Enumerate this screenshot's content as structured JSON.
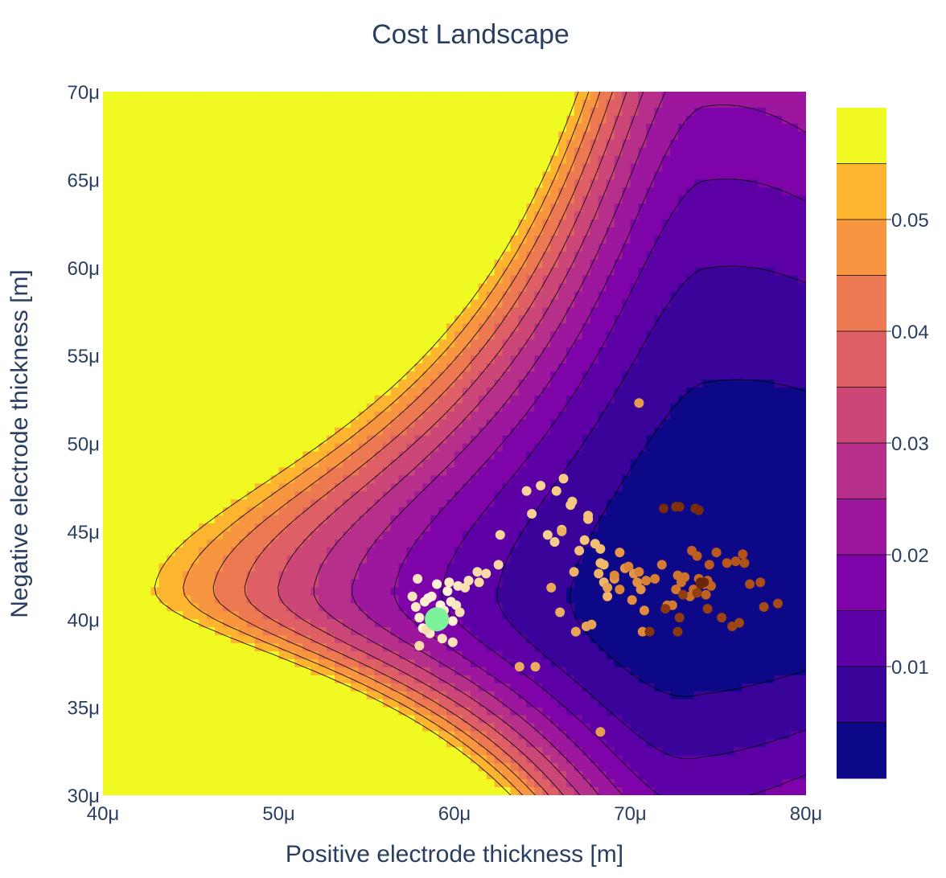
{
  "chart_data": {
    "type": "contour",
    "title": "Cost Landscape",
    "xlabel": "Positive electrode thickness [m]",
    "ylabel": "Negative electrode thickness [m]",
    "xlim": [
      4e-05,
      8e-05
    ],
    "ylim": [
      3e-05,
      7e-05
    ],
    "x_ticks": [
      "40μ",
      "50μ",
      "60μ",
      "70μ",
      "80μ"
    ],
    "y_ticks": [
      "30μ",
      "35μ",
      "40μ",
      "45μ",
      "50μ",
      "55μ",
      "60μ",
      "65μ",
      "70μ"
    ],
    "colorscale": "plasma",
    "colorbar": {
      "range": [
        0,
        0.06
      ],
      "levels": [
        0.005,
        0.01,
        0.015,
        0.02,
        0.025,
        0.03,
        0.035,
        0.04,
        0.045,
        0.05,
        0.055
      ],
      "tick_values": [
        0.01,
        0.02,
        0.03,
        0.04,
        0.05
      ],
      "tick_labels": [
        "0.01",
        "0.02",
        "0.03",
        "0.04",
        "0.05"
      ],
      "band_colors": [
        "#0d0887",
        "#3a049a",
        "#5c01a6",
        "#7e03a8",
        "#9c179e",
        "#b6308b",
        "#cc4778",
        "#de5f65",
        "#ed7953",
        "#f89540",
        "#fdb42f",
        "#f0f921"
      ]
    },
    "contour_model": {
      "minimum_x": 7.4e-05,
      "minimum_y": 4.2e-05,
      "sx": 7.8e-06,
      "sy": 6.7e-06,
      "kx": 0.4,
      "ky": 0.55,
      "c": 2.0,
      "cxy": 0.65,
      "power": 1.8,
      "scale": 0.0045,
      "base": 0.001
    },
    "optimizer_path": {
      "colorscale": [
        "#fff5dc",
        "#f5c47a",
        "#e08a3a",
        "#b8561b",
        "#6b2408"
      ],
      "points": [
        [
          5.85e-05,
          4.12e-05
        ],
        [
          5.92e-05,
          4.08e-05
        ],
        [
          5.88e-05,
          4.02e-05
        ],
        [
          5.96e-05,
          4.16e-05
        ],
        [
          5.82e-05,
          3.95e-05
        ],
        [
          5.9e-05,
          4.2e-05
        ],
        [
          5.99e-05,
          3.99e-05
        ],
        [
          5.87e-05,
          4.13e-05
        ],
        [
          5.94e-05,
          4.05e-05
        ],
        [
          5.83e-05,
          4.1e-05
        ],
        [
          5.8e-05,
          4.01e-05
        ],
        [
          5.91e-05,
          3.97e-05
        ],
        [
          5.98e-05,
          4.1e-05
        ],
        [
          5.86e-05,
          3.92e-05
        ],
        [
          5.78e-05,
          4.07e-05
        ],
        [
          5.97e-05,
          4.21e-05
        ],
        [
          6.02e-05,
          4.19e-05
        ],
        [
          6.01e-05,
          4.08e-05
        ],
        [
          5.79e-05,
          4.23e-05
        ],
        [
          5.76e-05,
          4.13e-05
        ],
        [
          5.93e-05,
          3.89e-05
        ],
        [
          5.99e-05,
          3.87e-05
        ],
        [
          6.06e-05,
          4.18e-05
        ],
        [
          6.08e-05,
          4.22e-05
        ],
        [
          6.03e-05,
          4.04e-05
        ],
        [
          5.84e-05,
          3.94e-05
        ],
        [
          5.8e-05,
          3.85e-05
        ],
        [
          6.13e-05,
          4.27e-05
        ],
        [
          6.18e-05,
          4.26e-05
        ],
        [
          6.14e-05,
          4.21e-05
        ],
        [
          6.25e-05,
          4.31e-05
        ],
        [
          6.26e-05,
          4.48e-05
        ],
        [
          6.41e-05,
          4.73e-05
        ],
        [
          6.49e-05,
          4.76e-05
        ],
        [
          6.44e-05,
          4.6e-05
        ],
        [
          6.53e-05,
          4.48e-05
        ],
        [
          6.57e-05,
          4.44e-05
        ],
        [
          6.58e-05,
          4.73e-05
        ],
        [
          6.62e-05,
          4.8e-05
        ],
        [
          6.61e-05,
          4.51e-05
        ],
        [
          6.66e-05,
          4.65e-05
        ],
        [
          6.67e-05,
          4.67e-05
        ],
        [
          6.74e-05,
          4.45e-05
        ],
        [
          6.76e-05,
          4.57e-05
        ],
        [
          6.76e-05,
          4.59e-05
        ],
        [
          6.8e-05,
          4.43e-05
        ],
        [
          6.71e-05,
          4.39e-05
        ],
        [
          6.83e-05,
          4.4e-05
        ],
        [
          6.83e-05,
          4.32e-05
        ],
        [
          6.85e-05,
          4.31e-05
        ],
        [
          6.85e-05,
          4.21e-05
        ],
        [
          6.87e-05,
          4.13e-05
        ],
        [
          6.82e-05,
          4.26e-05
        ],
        [
          6.68e-05,
          4.27e-05
        ],
        [
          6.61e-05,
          4.5e-05
        ],
        [
          6.6e-05,
          4.04e-05
        ],
        [
          6.46e-05,
          3.73e-05
        ],
        [
          6.37e-05,
          3.73e-05
        ],
        [
          6.55e-05,
          4.18e-05
        ],
        [
          6.69e-05,
          3.93e-05
        ],
        [
          6.75e-05,
          3.96e-05
        ],
        [
          6.78e-05,
          3.97e-05
        ],
        [
          6.87e-05,
          4.18e-05
        ],
        [
          6.83e-05,
          3.36e-05
        ],
        [
          7.05e-05,
          5.23e-05
        ],
        [
          6.91e-05,
          4.23e-05
        ],
        [
          6.94e-05,
          4.38e-05
        ],
        [
          6.97e-05,
          4.29e-05
        ],
        [
          7.02e-05,
          4.26e-05
        ],
        [
          7.06e-05,
          4.17e-05
        ],
        [
          7.01e-05,
          4.11e-05
        ],
        [
          7.04e-05,
          4.21e-05
        ],
        [
          7.08e-05,
          4.05e-05
        ],
        [
          7.07e-05,
          3.93e-05
        ],
        [
          6.91e-05,
          4.25e-05
        ],
        [
          6.94e-05,
          4.17e-05
        ],
        [
          6.99e-05,
          4.3e-05
        ],
        [
          7.05e-05,
          4.27e-05
        ],
        [
          7.09e-05,
          4.22e-05
        ],
        [
          7.14e-05,
          4.23e-05
        ],
        [
          7.18e-05,
          4.31e-05
        ],
        [
          7.21e-05,
          4.08e-05
        ],
        [
          7.24e-05,
          4.08e-05
        ],
        [
          7.26e-05,
          4.17e-05
        ],
        [
          7.27e-05,
          4.25e-05
        ],
        [
          7.29e-05,
          4.21e-05
        ],
        [
          7.31e-05,
          4.24e-05
        ],
        [
          7.34e-05,
          4.13e-05
        ],
        [
          7.36e-05,
          4.17e-05
        ],
        [
          7.39e-05,
          4.23e-05
        ],
        [
          7.41e-05,
          4.21e-05
        ],
        [
          7.42e-05,
          4.2e-05
        ],
        [
          7.44e-05,
          4.22e-05
        ],
        [
          7.46e-05,
          4.19e-05
        ],
        [
          7.43e-05,
          4.14e-05
        ],
        [
          7.35e-05,
          4.39e-05
        ],
        [
          7.38e-05,
          4.36e-05
        ],
        [
          7.45e-05,
          4.31e-05
        ],
        [
          7.49e-05,
          4.38e-05
        ],
        [
          7.55e-05,
          4.32e-05
        ],
        [
          7.6e-05,
          4.33e-05
        ],
        [
          7.64e-05,
          4.37e-05
        ],
        [
          7.65e-05,
          4.32e-05
        ],
        [
          7.68e-05,
          4.2e-05
        ],
        [
          7.74e-05,
          4.21e-05
        ],
        [
          7.76e-05,
          4.07e-05
        ],
        [
          7.84e-05,
          4.09e-05
        ],
        [
          7.62e-05,
          3.98e-05
        ],
        [
          7.58e-05,
          3.96e-05
        ],
        [
          7.52e-05,
          4.01e-05
        ],
        [
          7.44e-05,
          4.06e-05
        ],
        [
          7.38e-05,
          4.15e-05
        ],
        [
          7.3e-05,
          4.14e-05
        ],
        [
          7.28e-05,
          4.01e-05
        ],
        [
          7.27e-05,
          3.93e-05
        ],
        [
          7.2e-05,
          4.06e-05
        ],
        [
          7.11e-05,
          3.93e-05
        ],
        [
          7.26e-05,
          4.64e-05
        ],
        [
          7.28e-05,
          4.64e-05
        ],
        [
          7.37e-05,
          4.63e-05
        ],
        [
          7.39e-05,
          4.62e-05
        ],
        [
          7.19e-05,
          4.63e-05
        ],
        [
          7.4e-05,
          4.2e-05
        ],
        [
          7.42e-05,
          4.21e-05
        ],
        [
          7.4e-05,
          4.21e-05
        ]
      ]
    },
    "best_point": {
      "x": 5.9e-05,
      "y": 4e-05,
      "color": "#7cf29a"
    }
  }
}
